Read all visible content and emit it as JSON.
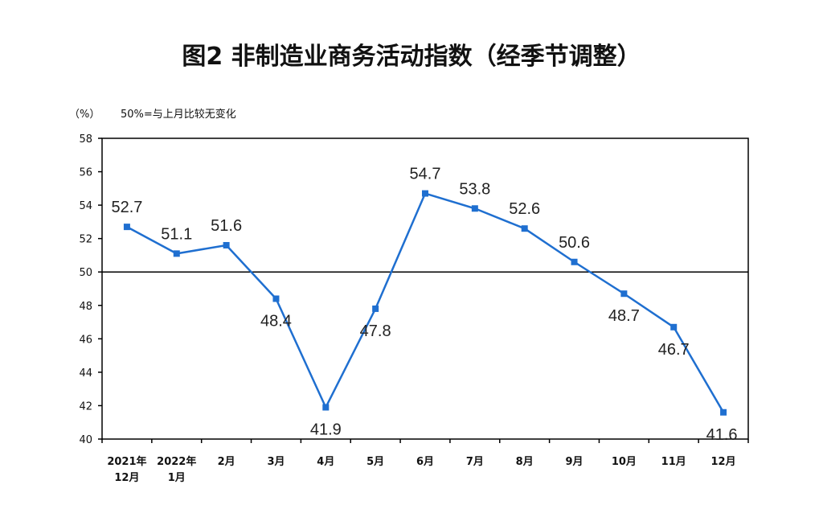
{
  "title": "图2  非制造业商务活动指数（经季节调整）",
  "unit_label": "（%）",
  "note": "50%=与上月比较无变化",
  "colors": {
    "line": "#1f6fd0",
    "marker": "#1f6fd0",
    "axis": "#000000"
  },
  "chart_data": {
    "type": "line",
    "title": "图2  非制造业商务活动指数（经季节调整）",
    "ylabel": "（%）",
    "ylim": [
      40,
      58
    ],
    "yticks": [
      40,
      42,
      44,
      46,
      48,
      50,
      52,
      54,
      56,
      58
    ],
    "reference_line": 50,
    "grid": false,
    "categories": [
      [
        "2021年",
        "12月"
      ],
      [
        "2022年",
        "1月"
      ],
      [
        "2月"
      ],
      [
        "3月"
      ],
      [
        "4月"
      ],
      [
        "5月"
      ],
      [
        "6月"
      ],
      [
        "7月"
      ],
      [
        "8月"
      ],
      [
        "9月"
      ],
      [
        "10月"
      ],
      [
        "11月"
      ],
      [
        "12月"
      ]
    ],
    "series": [
      {
        "values": [
          52.7,
          51.1,
          51.6,
          48.4,
          41.9,
          47.8,
          54.7,
          53.8,
          52.6,
          50.6,
          48.7,
          46.7,
          41.6
        ],
        "labels": [
          "52.7",
          "51.1",
          "51.6",
          "48.4",
          "41.9",
          "47.8",
          "54.7",
          "53.8",
          "52.6",
          "50.6",
          "48.7",
          "46.7",
          "41.6"
        ],
        "label_positions": [
          "above",
          "above",
          "above",
          "below",
          "below",
          "below",
          "above",
          "above",
          "above",
          "above",
          "below",
          "below",
          "below"
        ]
      }
    ]
  }
}
